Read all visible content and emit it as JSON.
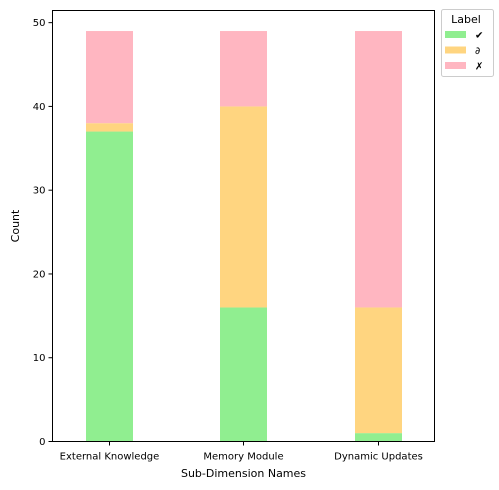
{
  "chart_data": {
    "type": "bar",
    "stacked": true,
    "categories": [
      "External Knowledge",
      "Memory Module",
      "Dynamic Updates"
    ],
    "series": [
      {
        "name": "✔",
        "color": "#90ee90",
        "values": [
          37,
          16,
          1
        ]
      },
      {
        "name": "∂",
        "color": "#ffd580",
        "values": [
          1,
          24,
          15
        ]
      },
      {
        "name": "✗",
        "color": "#ffb6c1",
        "values": [
          11,
          9,
          33
        ]
      }
    ],
    "xlabel": "Sub-Dimension Names",
    "ylabel": "Count",
    "ylim": [
      0,
      51.45
    ],
    "yticks": [
      0,
      10,
      20,
      30,
      40,
      50
    ],
    "grid": false,
    "legend": {
      "title": "Label",
      "placement": "outside-top-right"
    }
  }
}
